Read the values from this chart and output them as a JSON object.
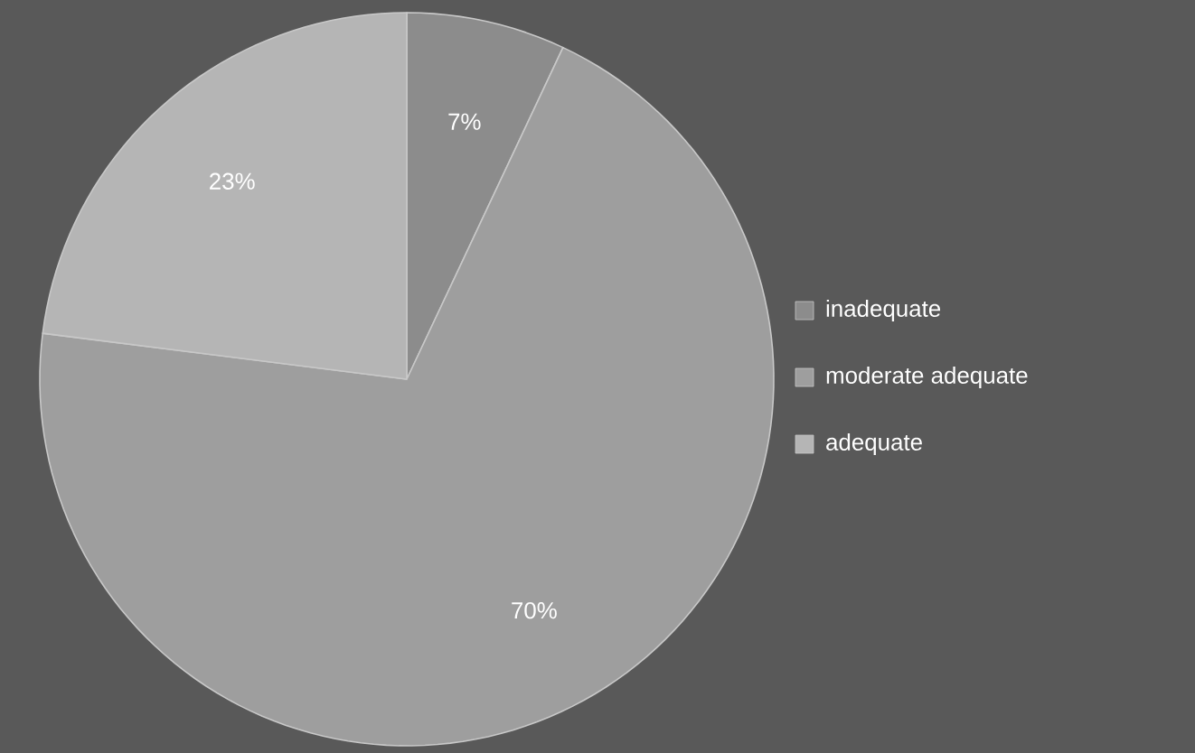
{
  "chart_data": {
    "type": "pie",
    "categories": [
      "inadequate",
      "moderate adequate",
      "adequate"
    ],
    "values": [
      7,
      70,
      23
    ],
    "colors": [
      "#8c8c8c",
      "#9e9e9e",
      "#b5b5b5"
    ],
    "value_labels": [
      "7%",
      "70%",
      "23%"
    ],
    "legend": "right"
  }
}
